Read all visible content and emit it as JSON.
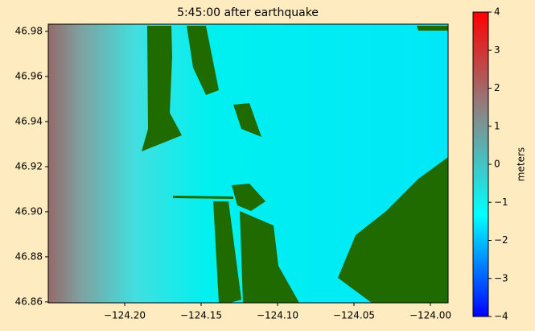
{
  "chart_data": {
    "type": "heatmap",
    "title": "5:45:00 after earthquake",
    "xlim": [
      -124.25,
      -123.9884
    ],
    "ylim": [
      46.8596,
      46.9832
    ],
    "xticks": [
      {
        "value": -124.2,
        "label": "−124.20"
      },
      {
        "value": -124.15,
        "label": "−124.15"
      },
      {
        "value": -124.1,
        "label": "−124.10"
      },
      {
        "value": -124.05,
        "label": "−124.05"
      },
      {
        "value": -124.0,
        "label": "−124.00"
      }
    ],
    "yticks": [
      46.86,
      46.88,
      {
        "value": 46.9,
        "label": "46.90"
      },
      46.92,
      46.94,
      46.96,
      46.98
    ],
    "colorbar": {
      "label": "meters",
      "clim": [
        -4,
        4
      ],
      "ticks": [
        {
          "value": -4,
          "label": "−4"
        },
        {
          "value": -3,
          "label": "−3"
        },
        {
          "value": -2,
          "label": "−2"
        },
        {
          "value": -1,
          "label": "−1"
        },
        0,
        1,
        2,
        3,
        4
      ],
      "colormap": [
        "#0000ff",
        "#00ffff",
        "#888888",
        "#ff0000"
      ]
    },
    "land_color": "#1f6b00"
  }
}
